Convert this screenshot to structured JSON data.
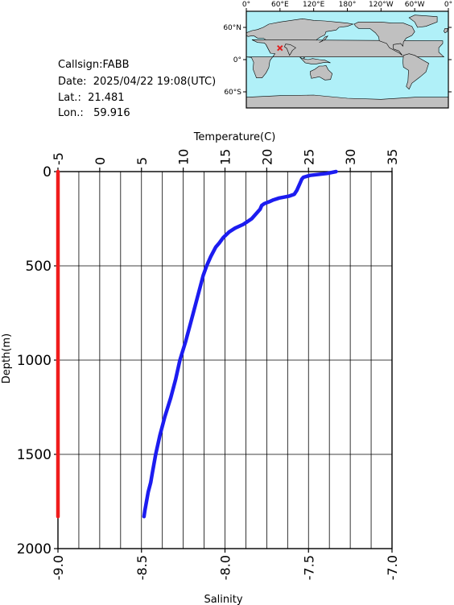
{
  "info": {
    "callsign": "Callsign:FABB",
    "date": "Date:  2025/04/22 19:08(UTC)",
    "lat": "Lat.:  21.481",
    "lon": "Lon.:   59.916"
  },
  "map": {
    "top_labels": [
      "0°",
      "60°E",
      "120°E",
      "180°",
      "120°W",
      "60°W",
      "0°"
    ],
    "left_labels": [
      "60°N",
      "0°",
      "60°S"
    ],
    "ocean_color": "#b0f0f8",
    "land_color": "#c0c0c0",
    "marker": {
      "lon": 59.916,
      "lat": 21.481,
      "color": "#e02020"
    }
  },
  "chart_data": {
    "type": "line",
    "title": "",
    "xlabel_top": "Temperature(C)",
    "xlabel_bottom": "Salinity",
    "ylabel": "Depth(m)",
    "temperature_range": [
      -5,
      35
    ],
    "temperature_ticks": [
      "-5",
      "0",
      "5",
      "10",
      "15",
      "20",
      "25",
      "30",
      "35"
    ],
    "salinity_range": [
      -9.0,
      -7.0
    ],
    "salinity_ticks": [
      "-9.0",
      "-8.5",
      "-8.0",
      "-7.5",
      "-7.0"
    ],
    "depth_range": [
      0,
      2000
    ],
    "depth_ticks": [
      "0",
      "500",
      "1000",
      "1500",
      "2000"
    ],
    "grid": true,
    "series": [
      {
        "color": "#1c1cf0",
        "axis": "temperature",
        "depth": [
          0,
          10,
          20,
          30,
          40,
          60,
          80,
          100,
          120,
          130,
          140,
          150,
          160,
          170,
          180,
          200,
          220,
          250,
          280,
          300,
          320,
          350,
          380,
          400,
          450,
          500,
          550,
          600,
          700,
          800,
          900,
          1000,
          1100,
          1200,
          1300,
          1400,
          1500,
          1600,
          1650,
          1700,
          1750,
          1800,
          1830
        ],
        "values": [
          28.3,
          27.2,
          25.2,
          24.4,
          24.2,
          24.0,
          23.8,
          23.6,
          23.3,
          22.7,
          21.5,
          20.8,
          20.3,
          19.7,
          19.4,
          19.2,
          18.8,
          18.2,
          17.2,
          16.2,
          15.5,
          14.8,
          14.3,
          13.9,
          13.3,
          12.8,
          12.4,
          12.1,
          11.5,
          10.9,
          10.3,
          9.6,
          9.1,
          8.5,
          7.8,
          7.2,
          6.7,
          6.3,
          6.1,
          5.8,
          5.6,
          5.4,
          5.3
        ]
      },
      {
        "color": "#f01c1c",
        "axis": "salinity",
        "depth": [
          0,
          1830
        ],
        "values": [
          -9.0,
          -9.0
        ]
      }
    ]
  }
}
